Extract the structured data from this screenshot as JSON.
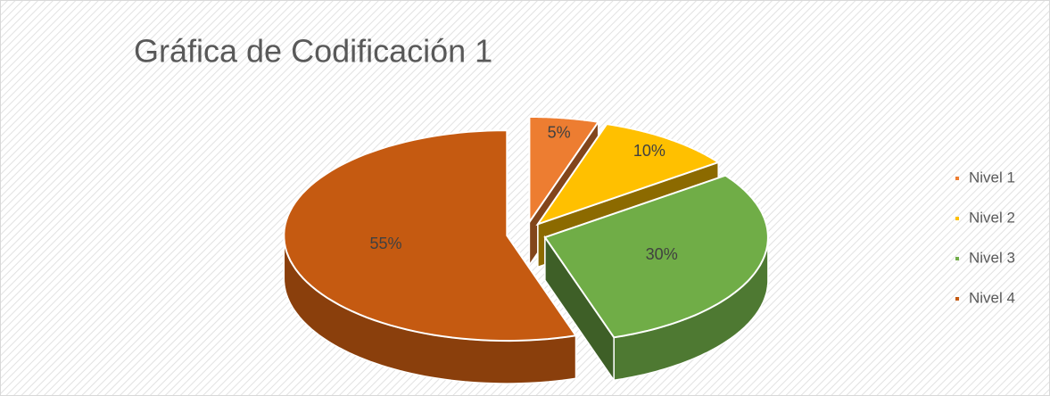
{
  "chart_data": {
    "type": "pie",
    "title": "Gráfica de Codificación 1",
    "categories": [
      "Nivel 1",
      "Nivel 2",
      "Nivel 3",
      "Nivel 4"
    ],
    "values": [
      5,
      10,
      30,
      55
    ],
    "value_labels": [
      "5%",
      "10%",
      "30%",
      "55%"
    ],
    "colors": [
      "#ed7d31",
      "#ffc000",
      "#70ad47",
      "#c55a11"
    ],
    "legend": "right"
  }
}
